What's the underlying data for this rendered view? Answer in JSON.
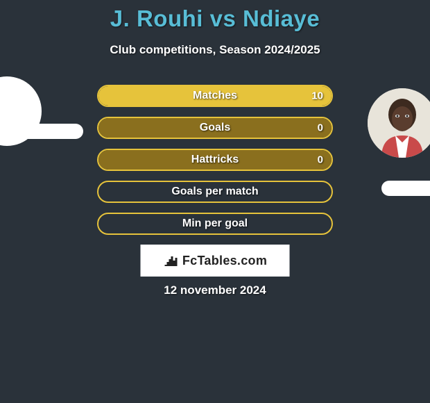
{
  "title": "J. Rouhi vs Ndiaye",
  "subtitle": "Club competitions, Season 2024/2025",
  "date": "12 november 2024",
  "logo_text": "FcTables.com",
  "colors": {
    "background": "#2a323a",
    "title": "#58bdd6",
    "text": "#ffffff",
    "row_accent": "#e6c33b",
    "row_secondary": "#8a6f1e",
    "logo_bg": "#ffffff",
    "logo_text": "#222222"
  },
  "players": {
    "left": {
      "name": "J. Rouhi",
      "has_avatar": false
    },
    "right": {
      "name": "Ndiaye",
      "has_avatar": true
    }
  },
  "stats": [
    {
      "label": "Matches",
      "left_value": "",
      "right_value": "10",
      "left_fill_pct": 0,
      "right_fill_pct": 100,
      "border_color": "#e6c33b",
      "right_fill_color": "#e6c33b"
    },
    {
      "label": "Goals",
      "left_value": "",
      "right_value": "0",
      "left_fill_pct": 0,
      "right_fill_pct": 100,
      "border_color": "#e6c33b",
      "right_fill_color": "#8a6f1e"
    },
    {
      "label": "Hattricks",
      "left_value": "",
      "right_value": "0",
      "left_fill_pct": 0,
      "right_fill_pct": 100,
      "border_color": "#e6c33b",
      "right_fill_color": "#8a6f1e"
    },
    {
      "label": "Goals per match",
      "left_value": "",
      "right_value": "",
      "left_fill_pct": 0,
      "right_fill_pct": 0,
      "border_color": "#e6c33b",
      "right_fill_color": "#e6c33b"
    },
    {
      "label": "Min per goal",
      "left_value": "",
      "right_value": "",
      "left_fill_pct": 0,
      "right_fill_pct": 0,
      "border_color": "#e6c33b",
      "right_fill_color": "#e6c33b"
    }
  ]
}
